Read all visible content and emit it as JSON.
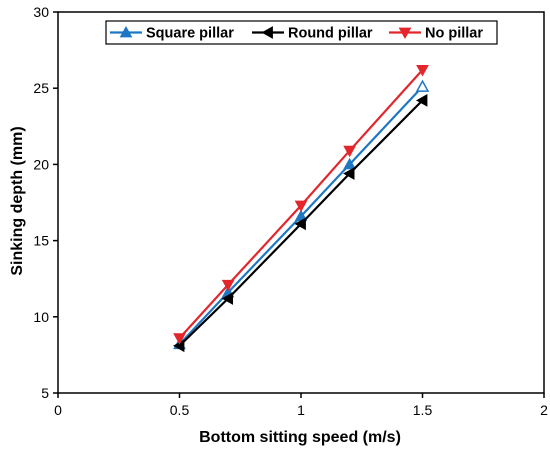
{
  "chart_data": {
    "type": "line",
    "title": "",
    "xlabel": "Bottom sitting speed (m/s)",
    "ylabel": "Sinking depth (mm)",
    "xlim": [
      0,
      2
    ],
    "ylim": [
      5,
      30
    ],
    "x_ticks": [
      "0",
      "0.5",
      "1",
      "1.5",
      "2"
    ],
    "y_ticks": [
      "5",
      "10",
      "15",
      "20",
      "25",
      "30"
    ],
    "grid": false,
    "legend_position": "top",
    "x": [
      0.5,
      0.7,
      1.0,
      1.2,
      1.5
    ],
    "series": [
      {
        "name": "Square pillar",
        "values": [
          8.2,
          11.6,
          16.6,
          20.0,
          25.1
        ],
        "color": "#1f77c4",
        "marker": "triangle-up"
      },
      {
        "name": "Round pillar",
        "values": [
          8.1,
          11.2,
          16.1,
          19.4,
          24.2
        ],
        "color": "#000000",
        "marker": "triangle-left"
      },
      {
        "name": "No pillar",
        "values": [
          8.6,
          12.1,
          17.3,
          20.9,
          26.2
        ],
        "color": "#e3262b",
        "marker": "triangle-down"
      }
    ]
  }
}
